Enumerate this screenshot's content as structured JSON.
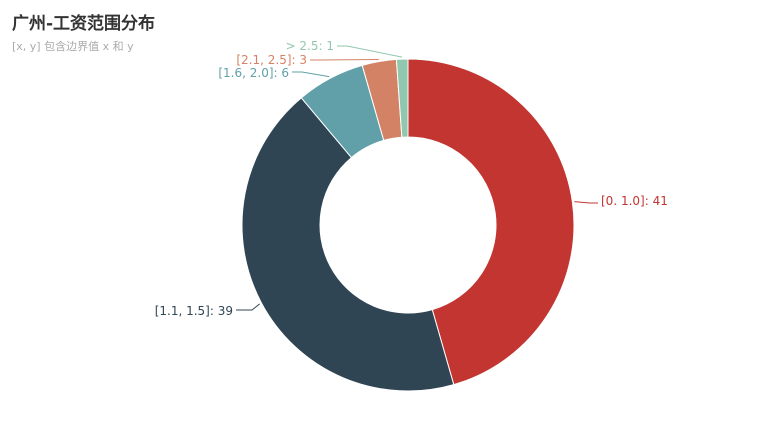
{
  "chart_data": {
    "type": "pie",
    "title": "广州-工资范围分布",
    "subtitle": "[x, y] 包含边界值 x 和 y",
    "label_format": "{name}: {value}",
    "donut": true,
    "slices": [
      {
        "name": "[0. 1.0]",
        "value": 41,
        "color": "#c23531"
      },
      {
        "name": "[1.1, 1.5]",
        "value": 39,
        "color": "#2f4554"
      },
      {
        "name": "[1.6, 2.0]",
        "value": 6,
        "color": "#61a0a8"
      },
      {
        "name": "[2.1, 2.5]",
        "value": 3,
        "color": "#d48265"
      },
      {
        "name": "> 2.5",
        "value": 1,
        "color": "#91c7ae"
      }
    ]
  }
}
